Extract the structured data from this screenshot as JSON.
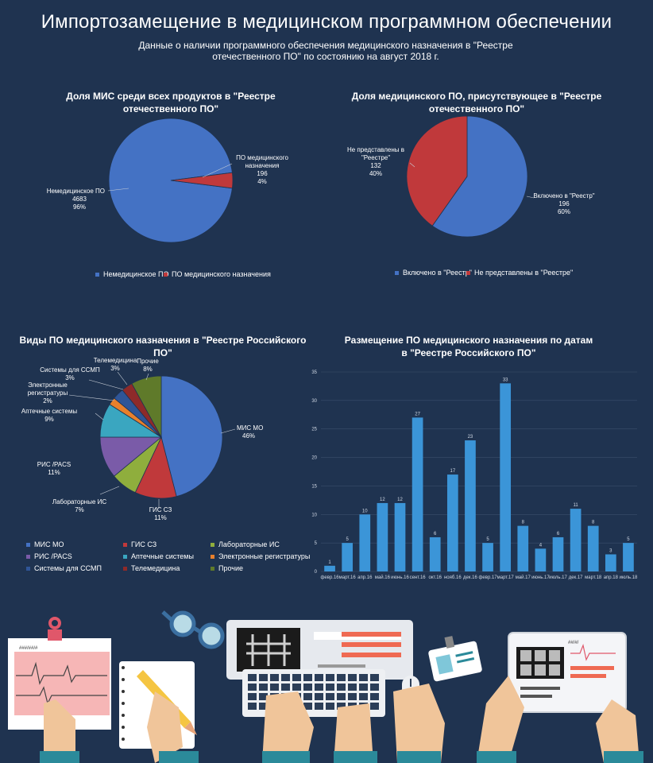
{
  "header": {
    "title": "Импортозамещение в медицинском программном обеспечении",
    "subtitle": "Данные о наличии программного обеспечения медицинского назначения в \"Реестре отечественного ПО\" по состоянию на август 2018 г."
  },
  "chart_data": [
    {
      "type": "pie",
      "title": "Доля МИС среди всех продуктов в \"Реестре отечественного ПО\"",
      "categories": [
        "Немедицинское ПО",
        "ПО медицинского назначения"
      ],
      "values": [
        4683,
        196
      ],
      "percent_labels": [
        "96%",
        "4%"
      ],
      "colors": [
        "#4472c4",
        "#c0393b"
      ],
      "legend": "bottom"
    },
    {
      "type": "pie",
      "title": "Доля медицинского ПО, присутствующее в \"Реестре отечественного ПО\"",
      "categories": [
        "Включено в \"Реестр\"",
        "Не представлены в \"Реестре\""
      ],
      "values": [
        196,
        132
      ],
      "percent_labels": [
        "60%",
        "40%"
      ],
      "colors": [
        "#4472c4",
        "#c0393b"
      ],
      "legend": "bottom"
    },
    {
      "type": "pie",
      "title": "Виды ПО медицинского назначения в \"Реестре Российского ПО\"",
      "categories": [
        "МИС МО",
        "ГИС СЗ",
        "Лабораторные ИС",
        "РИС /PACS",
        "Аптечные системы",
        "Электронные регистратуры",
        "Системы для ССМП",
        "Телемедицина",
        "Прочие"
      ],
      "values": [
        46,
        11,
        7,
        11,
        9,
        2,
        3,
        3,
        8
      ],
      "percent_labels": [
        "46%",
        "11%",
        "7%",
        "11%",
        "9%",
        "2%",
        "3%",
        "3%",
        "8%"
      ],
      "colors": [
        "#4472c4",
        "#c0393b",
        "#8fae3d",
        "#7a5ba8",
        "#3aa6c0",
        "#e8802c",
        "#2f5597",
        "#8e2a2a",
        "#5f7a2a"
      ],
      "legend": "bottom"
    },
    {
      "type": "bar",
      "title": "Размещение ПО медицинского назначения по датам в \"Реестре Российского ПО\"",
      "categories": [
        "февр.16",
        "март.16",
        "апр.16",
        "май.16",
        "июнь.16",
        "сент.16",
        "окт.16",
        "нояб.16",
        "дек.16",
        "февр.17",
        "март.17",
        "май.17",
        "июнь.17",
        "июль.17",
        "дек.17",
        "март.18",
        "апр.18",
        "июль.18"
      ],
      "values": [
        1,
        5,
        10,
        12,
        12,
        27,
        6,
        17,
        23,
        5,
        33,
        8,
        4,
        6,
        11,
        8,
        3,
        5
      ],
      "ylim": [
        0,
        35
      ],
      "yticks": [
        "0",
        "5",
        "10",
        "15",
        "20",
        "25",
        "30",
        "35"
      ],
      "color": "#3b95d8",
      "grid": true
    }
  ],
  "pie1_text": {
    "title_l1": "Доля МИС среди всех продуктов в \"Реестре",
    "title_l2": "отечественного ПО\"",
    "a_name": "Немедицинское ПО",
    "a_val": "4683",
    "a_pct": "96%",
    "b_name1": "ПО медицинского",
    "b_name2": "назначения",
    "b_val": "196",
    "b_pct": "4%",
    "legend_a": "Немедицинское ПО",
    "legend_b": "ПО медицинского назначения"
  },
  "pie2_text": {
    "title_l1": "Доля медицинского ПО, присутствующее в \"Реестре",
    "title_l2": "отечественного ПО\"",
    "a_name": "Включено в \"Реестр\"",
    "a_val": "196",
    "a_pct": "60%",
    "b_name1": "Не представлены в",
    "b_name2": "\"Реестре\"",
    "b_val": "132",
    "b_pct": "40%",
    "legend_a": "Включено в \"Реестр\"",
    "legend_b": "Не представлены в \"Реестре\""
  },
  "pie3_text": {
    "title": "Виды ПО медицинского назначения в \"Реестре Российского ПО\"",
    "labels": {
      "mis": [
        "МИС МО",
        "46%"
      ],
      "gis": [
        "ГИС СЗ",
        "11%"
      ],
      "lab": [
        "Лабораторные ИС",
        "7%"
      ],
      "ris": [
        "РИС /PACS",
        "11%"
      ],
      "apt": [
        "Аптечные системы",
        "9%"
      ],
      "elr": [
        "Электронные",
        "регистратуры",
        "2%"
      ],
      "ssmp": [
        "Системы для ССМП",
        "3%"
      ],
      "tele": [
        "Телемедицина",
        "3%"
      ],
      "other": [
        "Прочие",
        "8%"
      ]
    }
  },
  "bar_text": {
    "title_l1": "Размещение ПО медицинского назначения по датам",
    "title_l2": "в \"Реестре Российского ПО\""
  },
  "illustration": {
    "clipboard_text": "###/##/#",
    "tablet_text": "##/#/"
  }
}
